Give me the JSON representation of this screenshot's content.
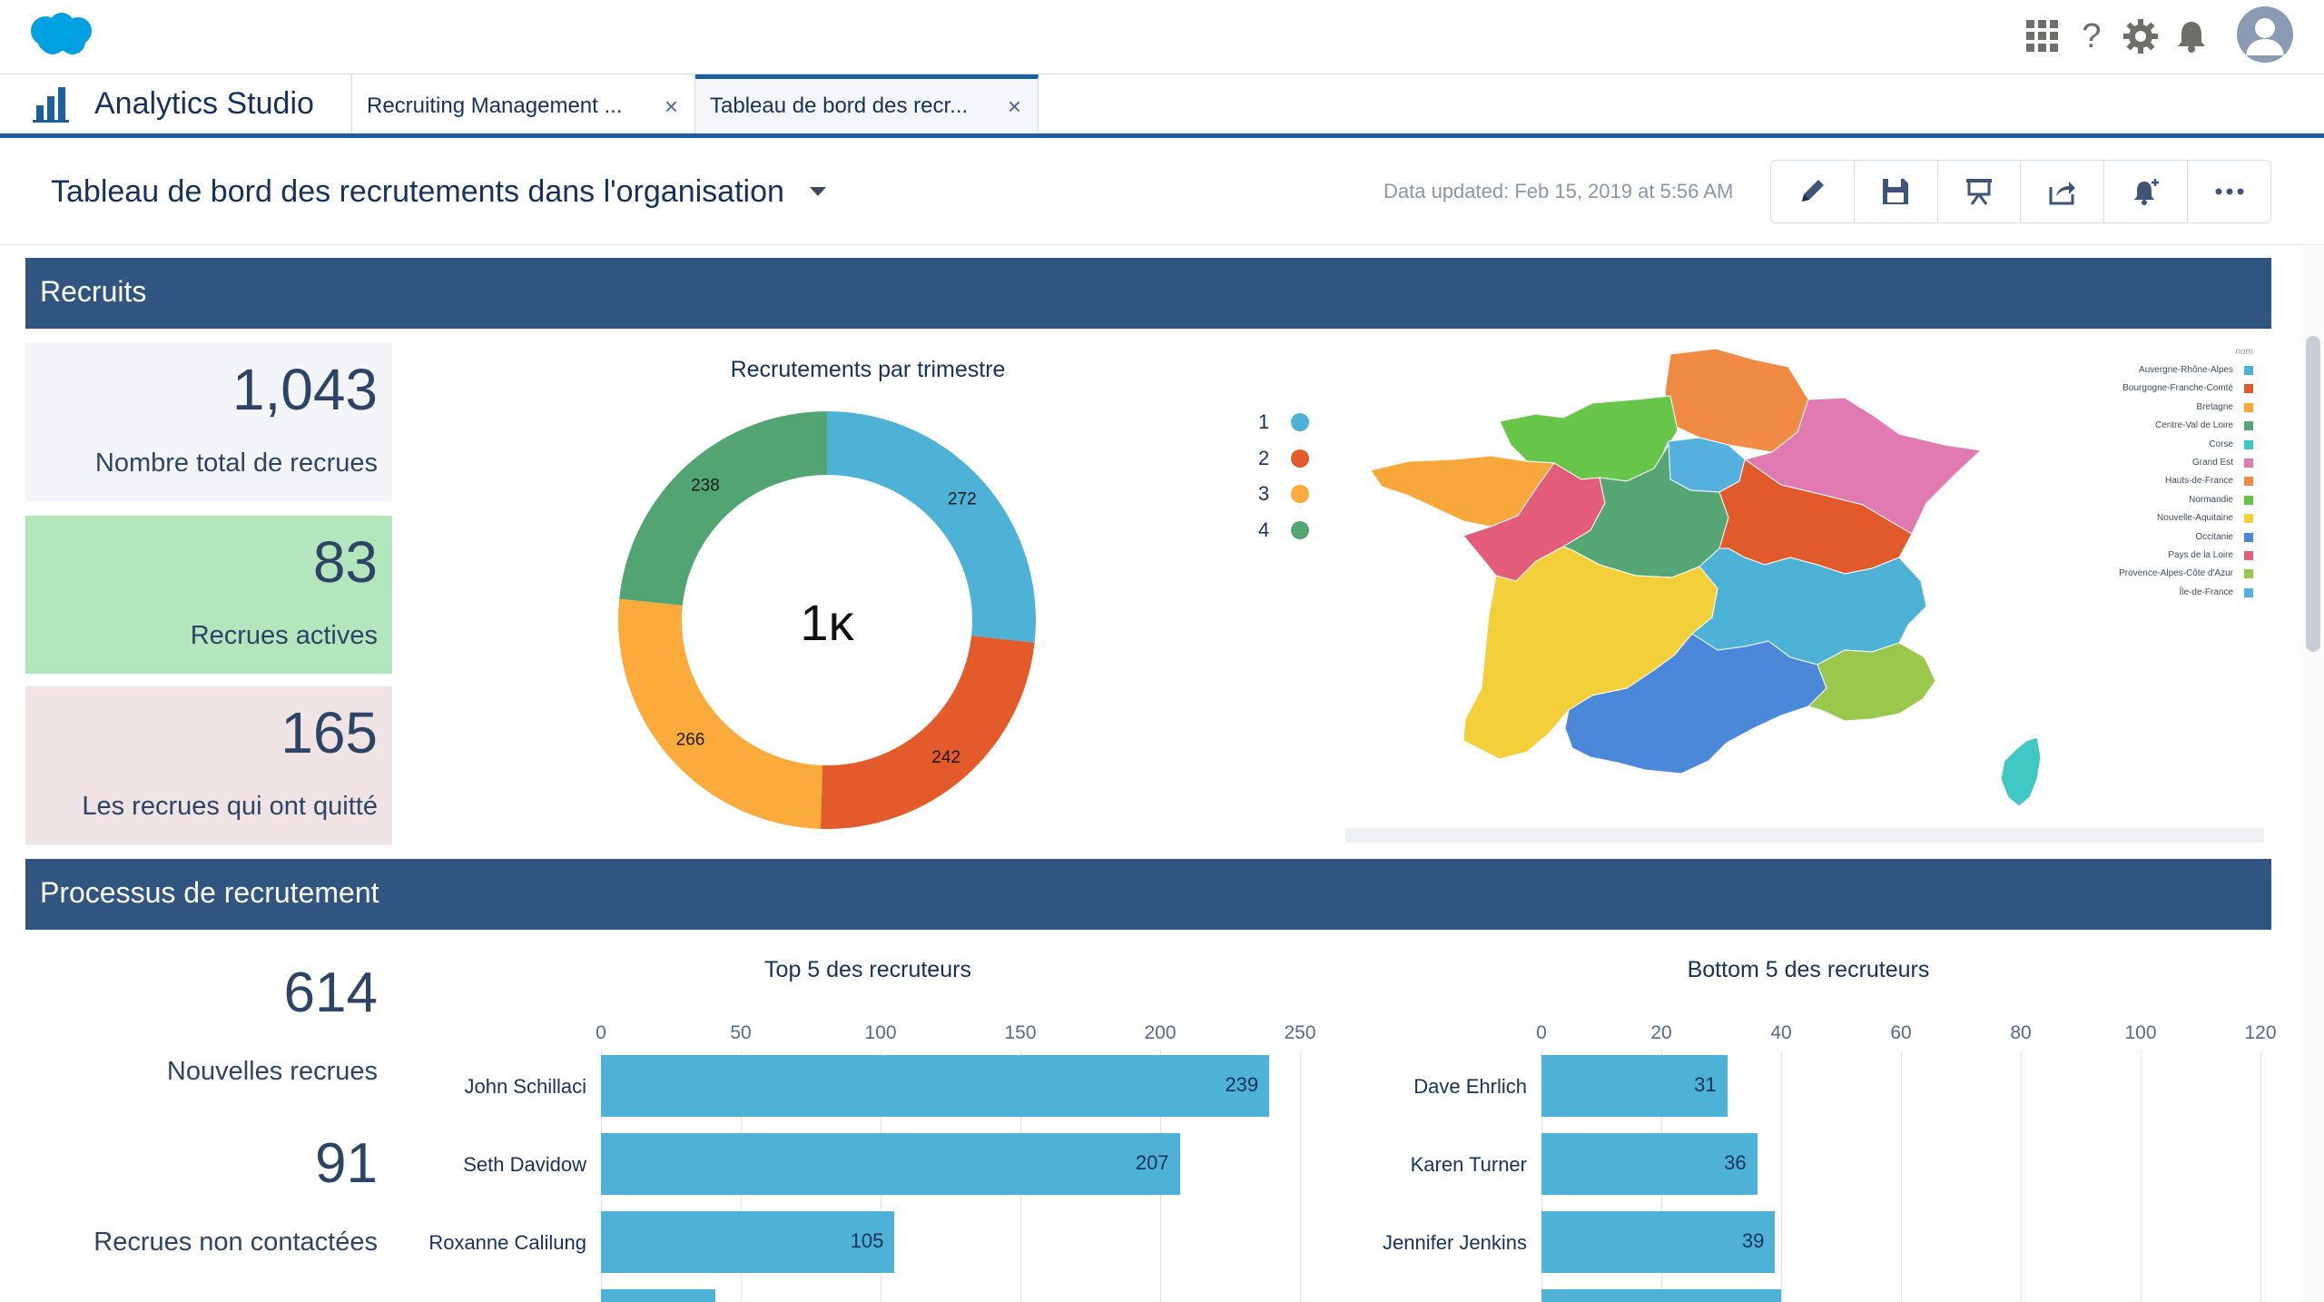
{
  "header": {
    "icons": [
      "app-launcher-icon",
      "help-icon",
      "setup-gear-icon",
      "notifications-bell-icon",
      "user-avatar-icon"
    ],
    "help_glyph": "?"
  },
  "app": {
    "name": "Analytics Studio",
    "tabs": [
      {
        "label": "Recruiting Management ...",
        "active": false
      },
      {
        "label": "Tableau de bord des recr...",
        "active": true
      }
    ],
    "close_glyph": "×"
  },
  "dashboard": {
    "title": "Tableau de bord des recrutements dans l'organisation",
    "updated": "Data updated: Feb 15, 2019 at 5:56 AM",
    "toolbar_icons": [
      "edit-pencil-icon",
      "save-icon",
      "present-icon",
      "share-icon",
      "subscribe-bell-icon",
      "more-options-icon"
    ]
  },
  "sections": {
    "recruits": "Recruits",
    "process": "Processus de recrutement"
  },
  "kpis": [
    {
      "value": "1,043",
      "label": "Nombre total de recrues",
      "color": "#f3f5f9"
    },
    {
      "value": "83",
      "label": "Recrues actives",
      "color": "#b4e6bd"
    },
    {
      "value": "165",
      "label": "Les recrues qui ont quitté",
      "color": "#f0e3e3"
    }
  ],
  "process_kpis": [
    {
      "value": "614",
      "label": "Nouvelles recrues"
    },
    {
      "value": "91",
      "label": "Recrues non contactées"
    }
  ],
  "donut": {
    "title": "Recrutements par trimestre",
    "center": "1ĸ",
    "legend": [
      "1",
      "2",
      "3",
      "4"
    ]
  },
  "map": {
    "legend_title": "nom",
    "regions": [
      {
        "name": "Auvergne-Rhône-Alpes",
        "color": "#4eb1d6"
      },
      {
        "name": "Bourgogne-Franche-Comté",
        "color": "#e05a2c"
      },
      {
        "name": "Bretagne",
        "color": "#f8a73a"
      },
      {
        "name": "Centre-Val de Loire",
        "color": "#55a575"
      },
      {
        "name": "Corse",
        "color": "#3fc7c4"
      },
      {
        "name": "Grand Est",
        "color": "#e07ab0"
      },
      {
        "name": "Hauts-de-France",
        "color": "#ef8b45"
      },
      {
        "name": "Normandie",
        "color": "#67c64a"
      },
      {
        "name": "Nouvelle-Aquitaine",
        "color": "#f3cf3a"
      },
      {
        "name": "Occitanie",
        "color": "#4b88d9"
      },
      {
        "name": "Pays de la Loire",
        "color": "#e35c79"
      },
      {
        "name": "Provence-Alpes-Côte d'Azur",
        "color": "#9ac84c"
      },
      {
        "name": "Île-de-France",
        "color": "#56b0e0"
      }
    ]
  },
  "chart_data": [
    {
      "type": "pie",
      "title": "Recrutements par trimestre",
      "categories": [
        "1",
        "2",
        "3",
        "4"
      ],
      "values": [
        272,
        242,
        266,
        238
      ],
      "colors": [
        "#4eb1d6",
        "#e35b2b",
        "#fbab3b",
        "#52a573"
      ],
      "legend": "left-of-map"
    },
    {
      "type": "bar",
      "orientation": "horizontal",
      "title": "Top 5 des recruteurs",
      "categories": [
        "John Schillaci",
        "Seth Davidow",
        "Roxanne Calilung"
      ],
      "values": [
        239,
        207,
        105
      ],
      "xlim": [
        0,
        250
      ],
      "xticks": [
        "0",
        "50",
        "100",
        "150",
        "200",
        "250"
      ],
      "color": "#4eb1d6"
    },
    {
      "type": "bar",
      "orientation": "horizontal",
      "title": "Bottom 5 des recruteurs",
      "categories": [
        "Dave Ehrlich",
        "Karen Turner",
        "Jennifer Jenkins"
      ],
      "values": [
        31,
        36,
        39
      ],
      "xlim": [
        0,
        120
      ],
      "xticks": [
        "0",
        "20",
        "40",
        "60",
        "80",
        "100",
        "120"
      ],
      "color": "#4eb1d6"
    }
  ]
}
